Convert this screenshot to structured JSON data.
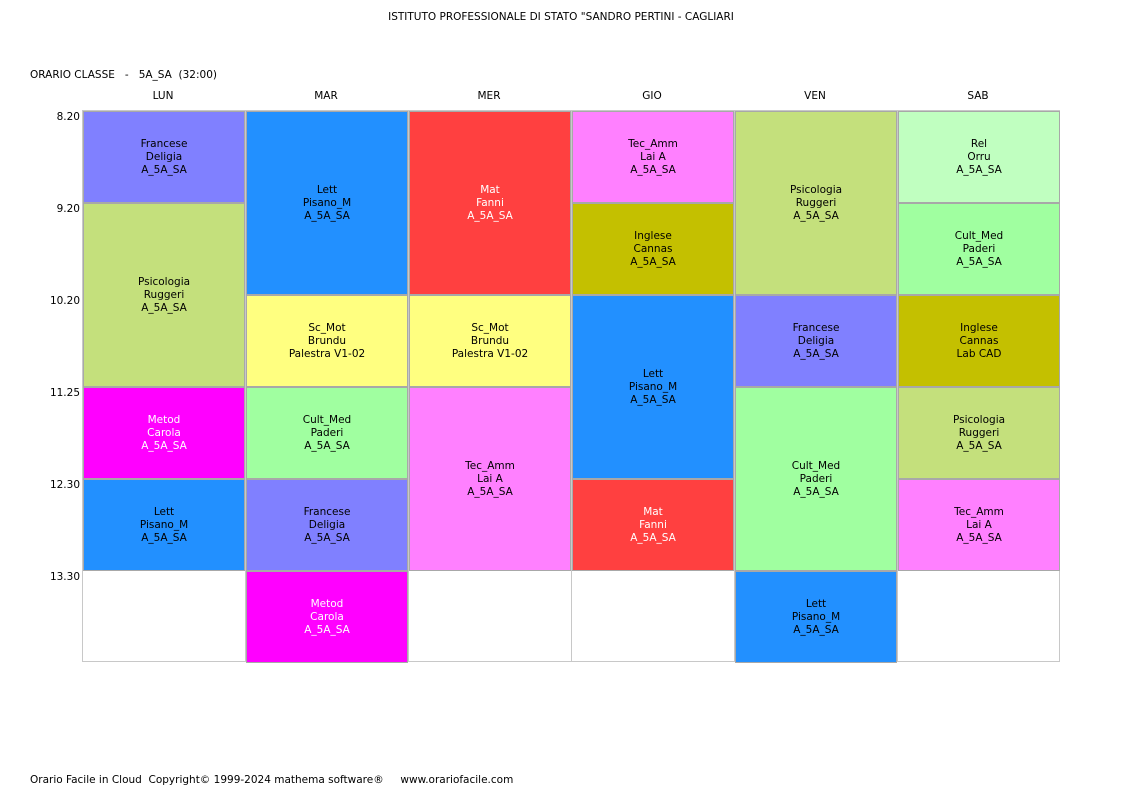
{
  "header": {
    "school": "ISTITUTO PROFESSIONALE DI STATO \"SANDRO PERTINI - CAGLIARI",
    "class_label": "ORARIO CLASSE   -   5A_SA  (32:00)"
  },
  "days": [
    "LUN",
    "MAR",
    "MER",
    "GIO",
    "VEN",
    "SAB"
  ],
  "times": [
    "8.20",
    "9.20",
    "10.20",
    "11.25",
    "12.30",
    "13.30"
  ],
  "lessons": [
    {
      "day": 0,
      "start": 0,
      "span": 1,
      "subject": "Francese",
      "teacher": "Deligia",
      "room": "A_5A_SA",
      "color": "#8080ff",
      "text": "#000000"
    },
    {
      "day": 0,
      "start": 1,
      "span": 2,
      "subject": "Psicologia",
      "teacher": "Ruggeri",
      "room": "A_5A_SA",
      "color": "#c4e07c",
      "text": "#000000"
    },
    {
      "day": 0,
      "start": 3,
      "span": 1,
      "subject": "Metod",
      "teacher": "Carola",
      "room": "A_5A_SA",
      "color": "#ff00ff",
      "text": "#ffffff"
    },
    {
      "day": 0,
      "start": 4,
      "span": 1,
      "subject": "Lett",
      "teacher": "Pisano_M",
      "room": "A_5A_SA",
      "color": "#2290ff",
      "text": "#000000"
    },
    {
      "day": 1,
      "start": 0,
      "span": 2,
      "subject": "Lett",
      "teacher": "Pisano_M",
      "room": "A_5A_SA",
      "color": "#2290ff",
      "text": "#000000"
    },
    {
      "day": 1,
      "start": 2,
      "span": 1,
      "subject": "Sc_Mot",
      "teacher": "Brundu",
      "room": "Palestra V1-02",
      "color": "#ffff80",
      "text": "#000000"
    },
    {
      "day": 1,
      "start": 3,
      "span": 1,
      "subject": "Cult_Med",
      "teacher": "Paderi",
      "room": "A_5A_SA",
      "color": "#a0ffa0",
      "text": "#000000"
    },
    {
      "day": 1,
      "start": 4,
      "span": 1,
      "subject": "Francese",
      "teacher": "Deligia",
      "room": "A_5A_SA",
      "color": "#8080ff",
      "text": "#000000"
    },
    {
      "day": 1,
      "start": 5,
      "span": 1,
      "subject": "Metod",
      "teacher": "Carola",
      "room": "A_5A_SA",
      "color": "#ff00ff",
      "text": "#ffffff"
    },
    {
      "day": 2,
      "start": 0,
      "span": 2,
      "subject": "Mat",
      "teacher": "Fanni",
      "room": "A_5A_SA",
      "color": "#ff4040",
      "text": "#ffffff"
    },
    {
      "day": 2,
      "start": 2,
      "span": 1,
      "subject": "Sc_Mot",
      "teacher": "Brundu",
      "room": "Palestra V1-02",
      "color": "#ffff80",
      "text": "#000000"
    },
    {
      "day": 2,
      "start": 3,
      "span": 2,
      "subject": "Tec_Amm",
      "teacher": "Lai A",
      "room": "A_5A_SA",
      "color": "#ff80ff",
      "text": "#000000"
    },
    {
      "day": 3,
      "start": 0,
      "span": 1,
      "subject": "Tec_Amm",
      "teacher": "Lai A",
      "room": "A_5A_SA",
      "color": "#ff80ff",
      "text": "#000000"
    },
    {
      "day": 3,
      "start": 1,
      "span": 1,
      "subject": "Inglese",
      "teacher": "Cannas",
      "room": "A_5A_SA",
      "color": "#c4c000",
      "text": "#000000"
    },
    {
      "day": 3,
      "start": 2,
      "span": 2,
      "subject": "Lett",
      "teacher": "Pisano_M",
      "room": "A_5A_SA",
      "color": "#2290ff",
      "text": "#000000"
    },
    {
      "day": 3,
      "start": 4,
      "span": 1,
      "subject": "Mat",
      "teacher": "Fanni",
      "room": "A_5A_SA",
      "color": "#ff4040",
      "text": "#ffffff"
    },
    {
      "day": 4,
      "start": 0,
      "span": 2,
      "subject": "Psicologia",
      "teacher": "Ruggeri",
      "room": "A_5A_SA",
      "color": "#c4e07c",
      "text": "#000000"
    },
    {
      "day": 4,
      "start": 2,
      "span": 1,
      "subject": "Francese",
      "teacher": "Deligia",
      "room": "A_5A_SA",
      "color": "#8080ff",
      "text": "#000000"
    },
    {
      "day": 4,
      "start": 3,
      "span": 2,
      "subject": "Cult_Med",
      "teacher": "Paderi",
      "room": "A_5A_SA",
      "color": "#a0ffa0",
      "text": "#000000"
    },
    {
      "day": 4,
      "start": 5,
      "span": 1,
      "subject": "Lett",
      "teacher": "Pisano_M",
      "room": "A_5A_SA",
      "color": "#2290ff",
      "text": "#000000"
    },
    {
      "day": 5,
      "start": 0,
      "span": 1,
      "subject": "Rel",
      "teacher": "Orru",
      "room": "A_5A_SA",
      "color": "#c0ffc0",
      "text": "#000000"
    },
    {
      "day": 5,
      "start": 1,
      "span": 1,
      "subject": "Cult_Med",
      "teacher": "Paderi",
      "room": "A_5A_SA",
      "color": "#a0ffa0",
      "text": "#000000"
    },
    {
      "day": 5,
      "start": 2,
      "span": 1,
      "subject": "Inglese",
      "teacher": "Cannas",
      "room": "Lab CAD",
      "color": "#c4c000",
      "text": "#000000"
    },
    {
      "day": 5,
      "start": 3,
      "span": 1,
      "subject": "Psicologia",
      "teacher": "Ruggeri",
      "room": "A_5A_SA",
      "color": "#c4e07c",
      "text": "#000000"
    },
    {
      "day": 5,
      "start": 4,
      "span": 1,
      "subject": "Tec_Amm",
      "teacher": "Lai A",
      "room": "A_5A_SA",
      "color": "#ff80ff",
      "text": "#000000"
    }
  ],
  "footer": "Orario Facile in Cloud  Copyright© 1999-2024 mathema software®     www.orariofacile.com"
}
